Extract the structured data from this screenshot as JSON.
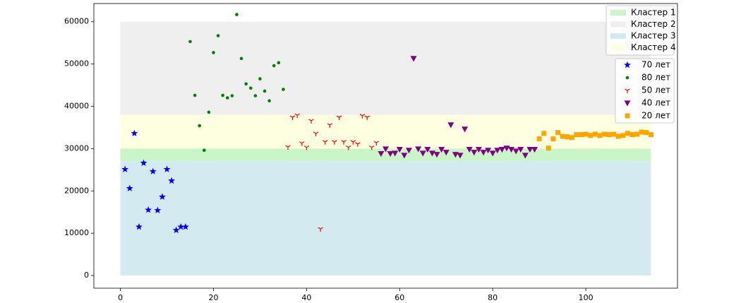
{
  "chart_data": {
    "type": "scatter",
    "xlim": [
      -5.7,
      119.7
    ],
    "ylim": [
      -3000,
      64300
    ],
    "xticks": [
      0,
      20,
      40,
      60,
      80,
      100
    ],
    "yticks": [
      0,
      10000,
      20000,
      30000,
      40000,
      50000,
      60000
    ],
    "legend": "upper right",
    "bands": [
      {
        "name": "Кластер 1",
        "color": "#c9f5c9",
        "x": [
          0,
          114
        ],
        "range": [
          27000,
          30000
        ]
      },
      {
        "name": "Кластер 2",
        "color": "#f0eff0",
        "x": [
          0,
          114
        ],
        "range": [
          38000,
          60000
        ]
      },
      {
        "name": "Кластер 3",
        "color": "#d3eaf0",
        "x": [
          0,
          114
        ],
        "range": [
          0,
          27000
        ]
      },
      {
        "name": "Кластер 4",
        "color": "#fefee0",
        "x": [
          0,
          114
        ],
        "range": [
          30000,
          38000
        ]
      }
    ],
    "series": [
      {
        "name": "70 лет",
        "color": "#0000ff",
        "marker": "*",
        "x": [
          1,
          2,
          3,
          4,
          5,
          6,
          7,
          8,
          9,
          10,
          11,
          12,
          13,
          14
        ],
        "values": [
          25100,
          20600,
          33600,
          11500,
          26600,
          15500,
          24600,
          15400,
          18600,
          25100,
          22400,
          10700,
          11500,
          11500
        ]
      },
      {
        "name": "80 лет",
        "color": "#008000",
        "marker": ".",
        "x": [
          15,
          16,
          17,
          18,
          19,
          20,
          21,
          22,
          23,
          24,
          25,
          26,
          27,
          28,
          29,
          30,
          31,
          32,
          33,
          34,
          35
        ],
        "values": [
          55300,
          42600,
          35400,
          29600,
          38600,
          52700,
          56700,
          42600,
          42000,
          42500,
          61700,
          51300,
          45300,
          44300,
          42500,
          46500,
          43600,
          41300,
          49600,
          50300,
          44000
        ]
      },
      {
        "name": "50 лет",
        "color": "#ff0000",
        "marker": "1",
        "x": [
          36,
          37,
          38,
          39,
          40,
          41,
          42,
          43,
          44,
          45,
          46,
          47,
          48,
          49,
          50,
          51,
          52,
          53,
          54,
          55
        ],
        "values": [
          30400,
          37400,
          37900,
          31300,
          30300,
          36600,
          33600,
          11000,
          31600,
          35600,
          31600,
          37400,
          31600,
          30300,
          31600,
          31100,
          37800,
          37400,
          30300,
          31400
        ]
      },
      {
        "name": "40 лет",
        "color": "#800080",
        "marker": "v",
        "x": [
          56,
          57,
          58,
          59,
          60,
          61,
          62,
          63,
          64,
          65,
          66,
          67,
          68,
          69,
          70,
          71,
          72,
          73,
          74,
          75,
          76,
          77,
          78,
          79,
          80,
          81,
          82,
          83,
          84,
          85,
          86,
          87,
          88,
          89
        ],
        "values": [
          28800,
          29900,
          28800,
          28900,
          29800,
          28400,
          29600,
          51300,
          29900,
          28900,
          29800,
          28900,
          28600,
          29800,
          29100,
          35600,
          28600,
          28400,
          34600,
          29800,
          29100,
          29800,
          29100,
          29600,
          28900,
          29600,
          29800,
          30100,
          29800,
          29400,
          29800,
          28400,
          29800,
          29800
        ]
      },
      {
        "name": "20 лет",
        "color": "#ffa500",
        "marker": "s",
        "x": [
          90,
          91,
          92,
          93,
          94,
          95,
          96,
          97,
          98,
          99,
          100,
          101,
          102,
          103,
          104,
          105,
          106,
          107,
          108,
          109,
          110,
          111,
          112,
          113,
          114
        ],
        "values": [
          32300,
          33600,
          30100,
          32300,
          33800,
          32900,
          32800,
          32600,
          33300,
          33300,
          33400,
          33100,
          33400,
          33100,
          33400,
          33300,
          33400,
          32900,
          33100,
          33600,
          33300,
          33400,
          33900,
          33800,
          33300
        ]
      }
    ]
  }
}
